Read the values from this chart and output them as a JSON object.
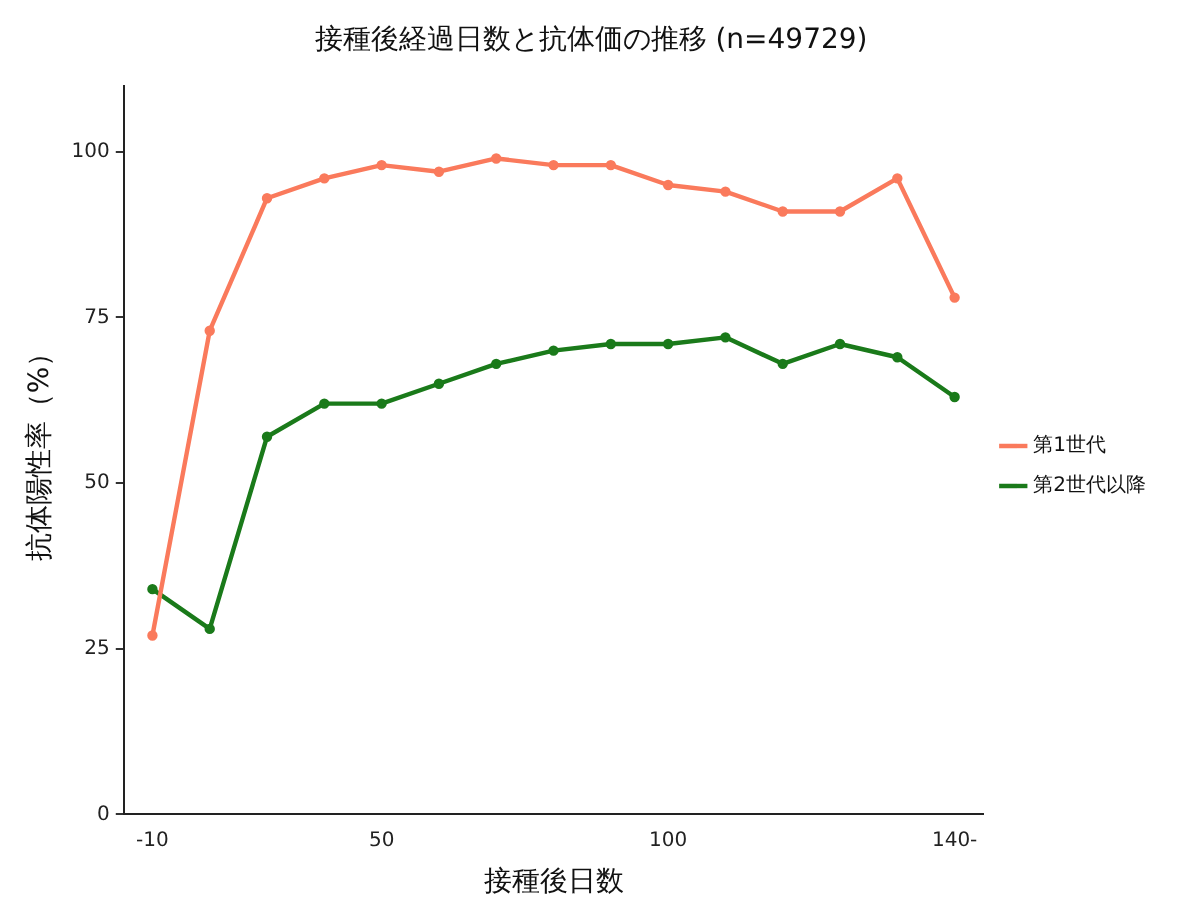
{
  "chart_data": {
    "type": "line",
    "title": "接種後経過日数と抗体価の推移 (n=49729)",
    "xlabel": "接種後日数",
    "ylabel": "抗体陽性率（%）",
    "categories": [
      "-10",
      null,
      null,
      null,
      "50",
      null,
      null,
      null,
      null,
      "100",
      null,
      null,
      null,
      null,
      "140-"
    ],
    "series": [
      {
        "name": "第1世代",
        "color": "#fa7a5c",
        "values": [
          27,
          73,
          93,
          96,
          98,
          97,
          99,
          98,
          98,
          95,
          94,
          91,
          91,
          96,
          78
        ]
      },
      {
        "name": "第2世代以降",
        "color": "#1a7a1a",
        "values": [
          34,
          28,
          57,
          62,
          62,
          65,
          68,
          70,
          71,
          71,
          72,
          68,
          71,
          69,
          63
        ]
      }
    ],
    "ylim": [
      0,
      110
    ],
    "yticks": [
      0,
      25,
      50,
      75,
      100
    ],
    "grid": false,
    "legend": "right",
    "marker": "circle",
    "line_style": "solid"
  }
}
